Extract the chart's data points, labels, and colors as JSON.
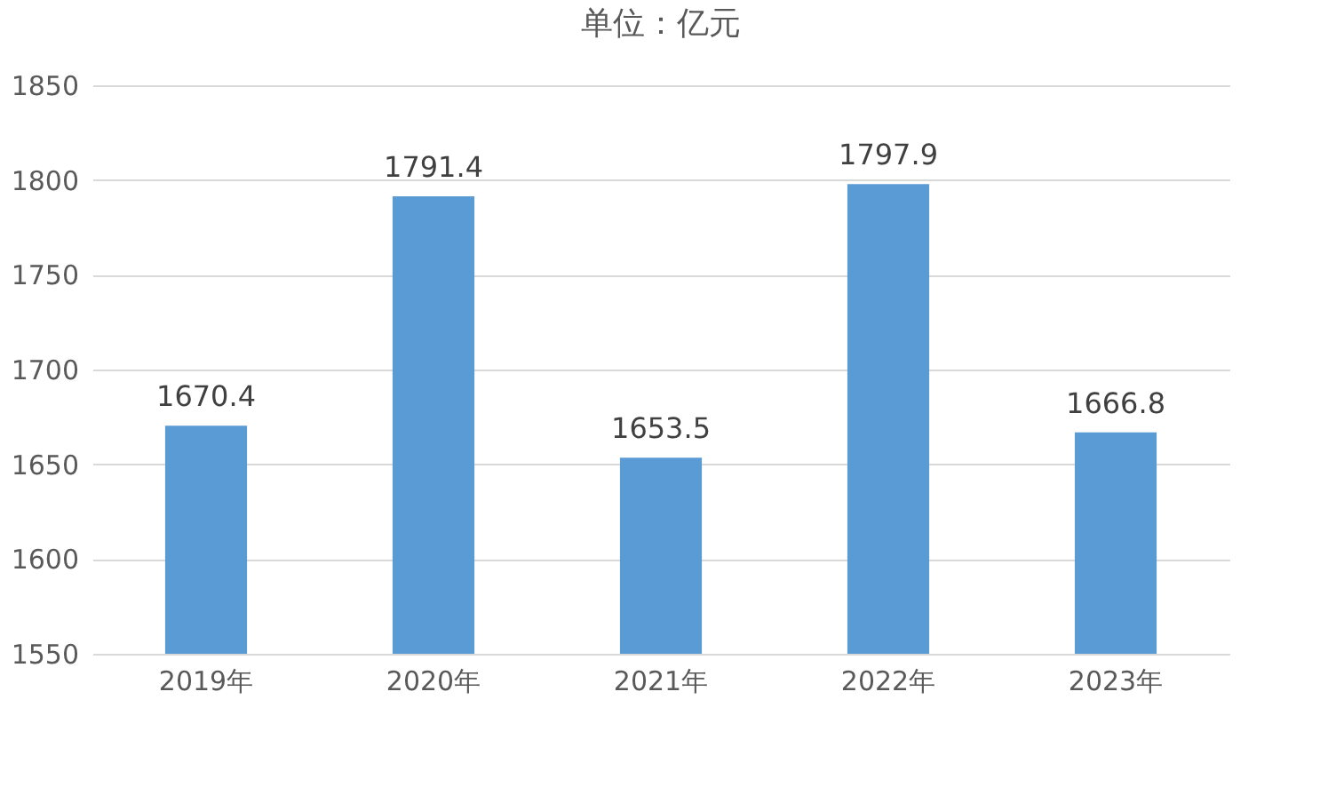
{
  "chart_data": {
    "type": "bar",
    "title": "单位：亿元",
    "categories": [
      "2019年",
      "2020年",
      "2021年",
      "2022年",
      "2023年"
    ],
    "series": [
      {
        "color": "#5b9bd5",
        "values": [
          1670.4,
          1791.4,
          1653.5,
          1797.9,
          1666.8
        ]
      }
    ],
    "ylim": [
      1550,
      1850
    ],
    "yticks": [
      1550,
      1600,
      1650,
      1700,
      1750,
      1800,
      1850
    ],
    "grid": "y",
    "data_labels": true
  }
}
